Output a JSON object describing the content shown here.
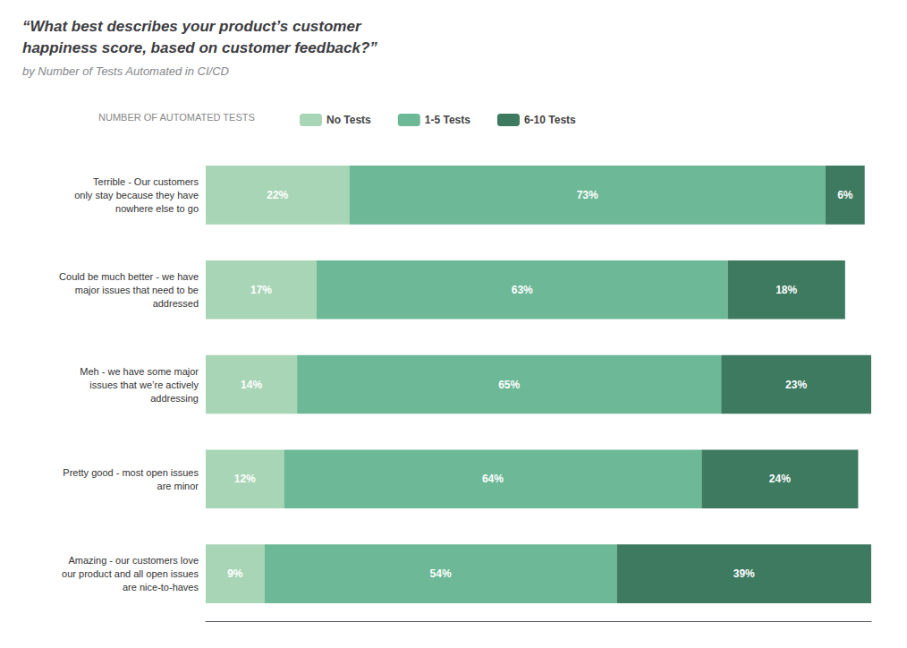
{
  "chart_data": {
    "type": "bar",
    "title": "“What best describes your product’s customer\nhappiness score, based on customer feedback?”",
    "subtitle": "by Number of Tests Automated in CI/CD",
    "legend_title": "NUMBER OF AUTOMATED TESTS",
    "orientation": "horizontal",
    "stacked": true,
    "data_labels": true,
    "tick_labels": "y",
    "grid": false,
    "legend": "top",
    "categories": [
      "Terrible - Our customers\nonly stay because they have\nnowhere else to go",
      "Could be much better - we have\nmajor issues that need to be\naddressed",
      "Meh - we have some major\nissues that we’re actively\naddressing",
      "Pretty good - most open issues\nare minor",
      "Amazing - our customers love\nour product and all open issues\nare nice-to-haves"
    ],
    "xlim": [
      0,
      102
    ],
    "series": [
      {
        "name": "No Tests",
        "color": "#a8d5b5",
        "values": [
          22,
          17,
          14,
          12,
          9
        ],
        "value_labels": [
          "22%",
          "17%",
          "14%",
          "12%",
          "9%"
        ]
      },
      {
        "name": "1-5 Tests",
        "color": "#6db897",
        "values": [
          73,
          63,
          65,
          64,
          54
        ],
        "value_labels": [
          "73%",
          "63%",
          "65%",
          "64%",
          "54%"
        ]
      },
      {
        "name": "6-10 Tests",
        "color": "#3d7a60",
        "values": [
          6,
          18,
          23,
          24,
          39
        ],
        "value_labels": [
          "6%",
          "18%",
          "23%",
          "24%",
          "39%"
        ]
      }
    ]
  }
}
